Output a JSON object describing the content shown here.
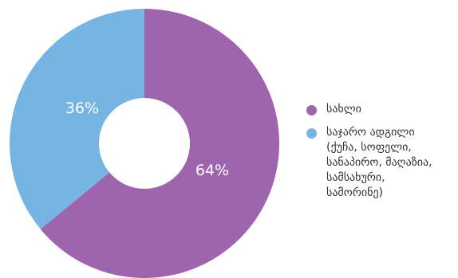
{
  "chart_data": {
    "type": "pie",
    "donut": true,
    "slices": [
      {
        "label": "სახლი",
        "value": 64,
        "display": "64%",
        "color": "#9e64ad"
      },
      {
        "label": "საჯარო ადგილი\n(ქუჩა, სოფელი,\nსანაპირო, მაღაზია,\nსამსახური,\nსამორინე)",
        "value": 36,
        "display": "36%",
        "color": "#76b4e3"
      }
    ],
    "start_angle_deg": 0,
    "direction": "clockwise",
    "legend_position": "right"
  }
}
